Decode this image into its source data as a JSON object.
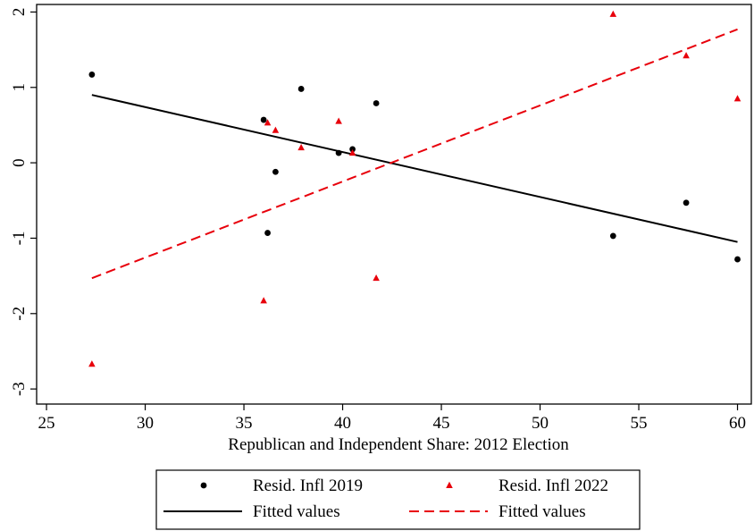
{
  "chart_data": {
    "type": "scatter",
    "xlabel": "Republican and Independent Share: 2012 Election",
    "ylabel": "",
    "xlim": [
      24.5,
      60.7
    ],
    "ylim": [
      -3.2,
      2.1
    ],
    "xticks": [
      "25",
      "30",
      "35",
      "40",
      "45",
      "50",
      "55",
      "60"
    ],
    "yticks": [
      "-3",
      "-2",
      "-1",
      "0",
      "1",
      "2"
    ],
    "grid": false,
    "legend_position": "bottom",
    "series": [
      {
        "name": "Resid. Infl 2019",
        "kind": "points",
        "marker": "circle",
        "color": "#000000",
        "points": [
          [
            27.3,
            1.17
          ],
          [
            36.0,
            0.57
          ],
          [
            36.2,
            -0.93
          ],
          [
            36.6,
            -0.12
          ],
          [
            37.9,
            0.98
          ],
          [
            39.8,
            0.13
          ],
          [
            40.5,
            0.18
          ],
          [
            41.7,
            0.79
          ],
          [
            53.7,
            -0.97
          ],
          [
            57.4,
            -0.53
          ],
          [
            60.0,
            -1.28
          ]
        ]
      },
      {
        "name": "Resid. Infl 2022",
        "kind": "points",
        "marker": "triangle",
        "color": "#e8000b",
        "points": [
          [
            27.3,
            -2.67
          ],
          [
            36.0,
            -1.83
          ],
          [
            36.2,
            0.53
          ],
          [
            36.6,
            0.43
          ],
          [
            37.9,
            0.2
          ],
          [
            39.8,
            0.55
          ],
          [
            40.5,
            0.13
          ],
          [
            41.7,
            -1.53
          ],
          [
            53.7,
            1.97
          ],
          [
            57.4,
            1.42
          ],
          [
            60.0,
            0.85
          ]
        ]
      },
      {
        "name": "Fitted values",
        "kind": "line",
        "style": "solid",
        "color": "#000000",
        "points": [
          [
            27.3,
            0.9
          ],
          [
            60.0,
            -1.05
          ]
        ]
      },
      {
        "name": "Fitted values",
        "kind": "line",
        "style": "dashed",
        "color": "#e8000b",
        "points": [
          [
            27.3,
            -1.53
          ],
          [
            60.0,
            1.77
          ]
        ]
      }
    ]
  }
}
